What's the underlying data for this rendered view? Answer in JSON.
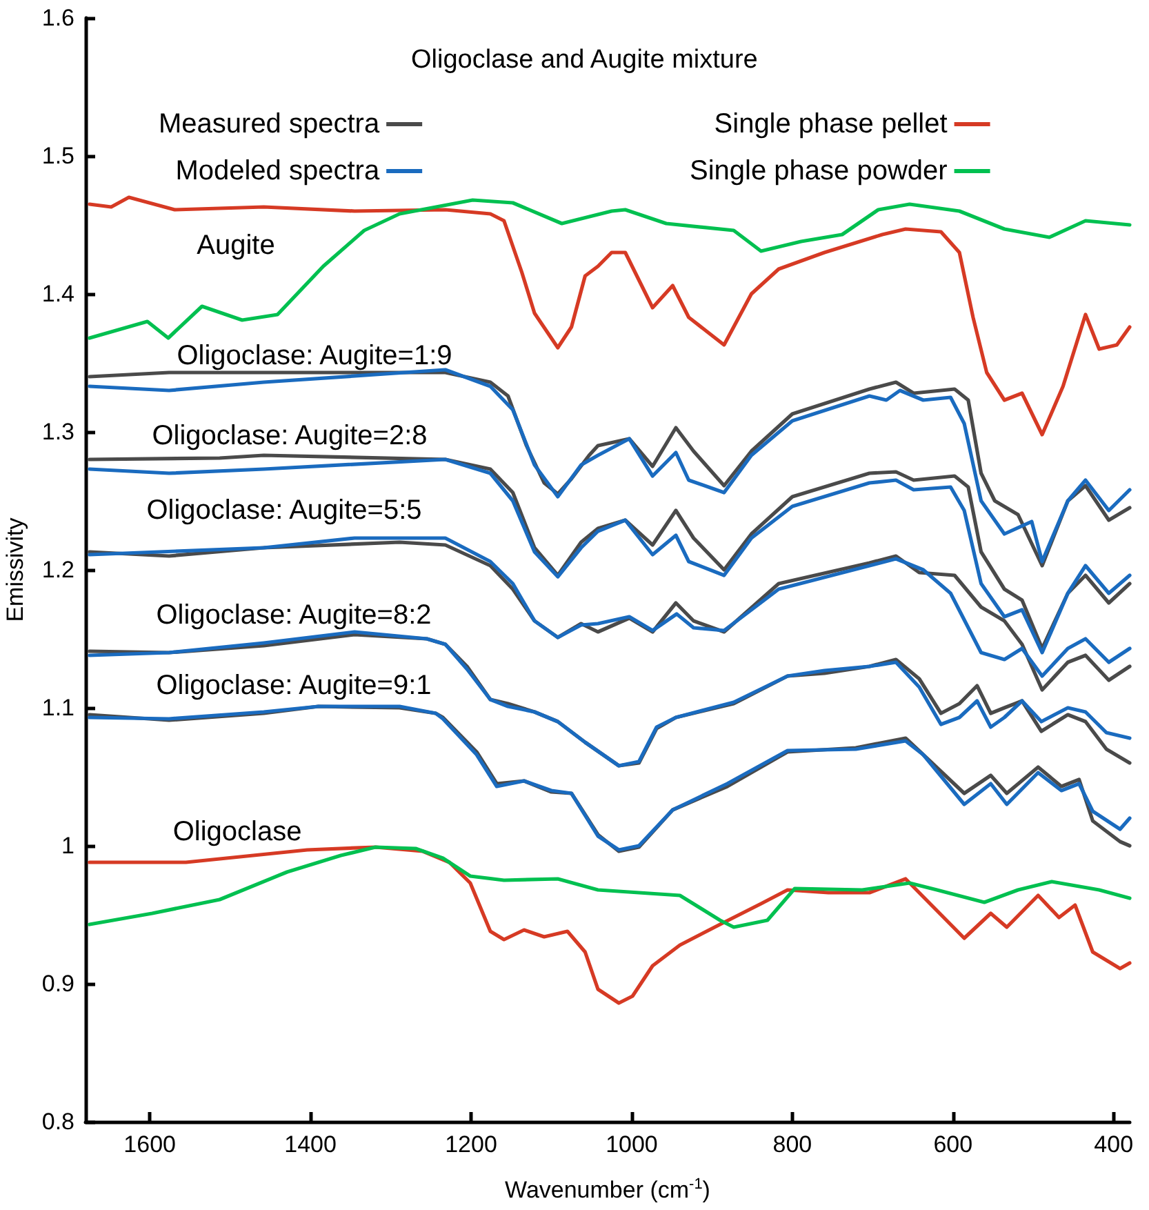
{
  "chart_data": {
    "type": "line",
    "legend_title": "Oligoclase and Augite mixture",
    "xlabel": "Wavenumber (cm$^{-1}$)",
    "ylabel": "Emissivity",
    "xlim": [
      1680,
      380
    ],
    "xticks": [
      1600,
      1400,
      1200,
      1000,
      800,
      600,
      400
    ],
    "ylim": [
      0.8,
      1.6
    ],
    "yticks": [
      0.8,
      0.9,
      1,
      1.1,
      1.2,
      1.3,
      1.4,
      1.5,
      1.6
    ],
    "grid": false,
    "legend": "top",
    "marker": "none",
    "line_style": "solid",
    "annotations": [
      "Augite",
      "Oligoclase: Augite=1:9",
      "Oligoclase: Augite=2:8",
      "Oligoclase: Augite=5:5",
      "Oligoclase: Augite=8:2",
      "Oligoclase: Augite=9:1",
      "Oligoclase"
    ],
    "series": [
      {
        "name": "Single phase pellet",
        "color": "#d63a24",
        "x": [
          1675,
          1648,
          1626,
          1569,
          1458,
          1345,
          1232,
          1176,
          1159,
          1137,
          1121,
          1092,
          1075,
          1058,
          1042,
          1025,
          1008,
          974,
          949,
          929,
          907,
          885,
          851,
          817,
          760,
          688,
          659,
          615,
          592,
          575,
          558,
          536,
          514,
          489,
          463,
          435,
          418,
          396,
          380
        ],
        "values": [
          1.465,
          1.463,
          1.47,
          1.461,
          1.463,
          1.46,
          1.461,
          1.458,
          1.453,
          1.416,
          1.386,
          1.361,
          1.376,
          1.413,
          1.42,
          1.43,
          1.43,
          1.39,
          1.406,
          1.383,
          1.373,
          1.363,
          1.4,
          1.418,
          1.43,
          1.443,
          1.447,
          1.445,
          1.43,
          1.383,
          1.343,
          1.323,
          1.328,
          1.298,
          1.333,
          1.385,
          1.36,
          1.363,
          1.376
        ]
      },
      {
        "name": "Single phase powder",
        "color": "#00c050",
        "x": [
          1675,
          1603,
          1577,
          1535,
          1485,
          1441,
          1384,
          1333,
          1289,
          1198,
          1148,
          1087,
          1025,
          1008,
          957,
          873,
          839,
          789,
          738,
          693,
          654,
          592,
          536,
          480,
          435,
          380
        ],
        "values": [
          1.368,
          1.38,
          1.368,
          1.391,
          1.381,
          1.385,
          1.42,
          1.446,
          1.458,
          1.468,
          1.466,
          1.451,
          1.46,
          1.461,
          1.451,
          1.446,
          1.431,
          1.438,
          1.443,
          1.461,
          1.465,
          1.46,
          1.447,
          1.441,
          1.453,
          1.45
        ]
      },
      {
        "name": "Measured spectra",
        "color": "#4a4a4a",
        "x": [
          1675,
          1576,
          1458,
          1232,
          1176,
          1154,
          1131,
          1109,
          1092,
          1075,
          1053,
          1042,
          1003,
          974,
          945,
          923,
          885,
          851,
          800,
          704,
          671,
          649,
          598,
          581,
          565,
          548,
          519,
          489,
          457,
          435,
          406,
          380
        ],
        "values": [
          1.34,
          1.343,
          1.343,
          1.343,
          1.336,
          1.326,
          1.29,
          1.263,
          1.255,
          1.266,
          1.283,
          1.29,
          1.295,
          1.275,
          1.303,
          1.286,
          1.261,
          1.286,
          1.313,
          1.331,
          1.336,
          1.328,
          1.331,
          1.323,
          1.27,
          1.25,
          1.24,
          1.203,
          1.25,
          1.261,
          1.236,
          1.245
        ]
      },
      {
        "name": "Modeled spectra",
        "color": "#1a6bbf",
        "x": [
          1675,
          1576,
          1458,
          1232,
          1176,
          1148,
          1121,
          1092,
          1063,
          1042,
          1003,
          974,
          945,
          929,
          885,
          851,
          800,
          704,
          683,
          666,
          637,
          603,
          586,
          565,
          536,
          502,
          489,
          457,
          435,
          406,
          380
        ],
        "values": [
          1.333,
          1.33,
          1.336,
          1.345,
          1.333,
          1.316,
          1.276,
          1.253,
          1.276,
          1.283,
          1.295,
          1.268,
          1.285,
          1.265,
          1.256,
          1.283,
          1.308,
          1.326,
          1.323,
          1.33,
          1.323,
          1.325,
          1.306,
          1.25,
          1.226,
          1.235,
          1.206,
          1.25,
          1.265,
          1.243,
          1.258
        ]
      },
      {
        "color": "#4a4a4a",
        "x": [
          1675,
          1513,
          1458,
          1232,
          1176,
          1148,
          1121,
          1092,
          1063,
          1042,
          1008,
          974,
          945,
          923,
          885,
          851,
          800,
          704,
          671,
          649,
          598,
          581,
          565,
          536,
          514,
          489,
          457,
          435,
          406,
          380
        ],
        "values": [
          1.28,
          1.281,
          1.283,
          1.28,
          1.273,
          1.256,
          1.216,
          1.196,
          1.22,
          1.23,
          1.236,
          1.218,
          1.243,
          1.223,
          1.2,
          1.226,
          1.253,
          1.27,
          1.271,
          1.265,
          1.268,
          1.26,
          1.213,
          1.186,
          1.178,
          1.143,
          1.183,
          1.196,
          1.176,
          1.19
        ]
      },
      {
        "color": "#1a6bbf",
        "x": [
          1675,
          1576,
          1458,
          1232,
          1176,
          1148,
          1121,
          1092,
          1063,
          1042,
          1008,
          974,
          945,
          929,
          885,
          851,
          800,
          704,
          671,
          649,
          603,
          586,
          565,
          536,
          514,
          489,
          457,
          435,
          406,
          380
        ],
        "values": [
          1.273,
          1.27,
          1.273,
          1.28,
          1.27,
          1.25,
          1.213,
          1.195,
          1.216,
          1.228,
          1.236,
          1.211,
          1.225,
          1.206,
          1.196,
          1.223,
          1.246,
          1.263,
          1.265,
          1.258,
          1.26,
          1.243,
          1.19,
          1.166,
          1.171,
          1.14,
          1.183,
          1.203,
          1.183,
          1.196
        ]
      },
      {
        "color": "#4a4a4a",
        "x": [
          1675,
          1576,
          1458,
          1289,
          1232,
          1176,
          1148,
          1121,
          1092,
          1063,
          1042,
          1003,
          974,
          945,
          923,
          885,
          817,
          704,
          671,
          642,
          598,
          565,
          536,
          514,
          489,
          457,
          435,
          406,
          380
        ],
        "values": [
          1.213,
          1.21,
          1.216,
          1.22,
          1.218,
          1.203,
          1.186,
          1.163,
          1.151,
          1.161,
          1.155,
          1.165,
          1.155,
          1.176,
          1.163,
          1.155,
          1.19,
          1.205,
          1.21,
          1.198,
          1.196,
          1.173,
          1.163,
          1.146,
          1.113,
          1.133,
          1.138,
          1.12,
          1.13
        ]
      },
      {
        "color": "#1a6bbf",
        "x": [
          1675,
          1458,
          1345,
          1232,
          1176,
          1148,
          1121,
          1092,
          1063,
          1042,
          1003,
          974,
          944,
          923,
          885,
          817,
          704,
          671,
          637,
          603,
          565,
          536,
          514,
          489,
          457,
          435,
          406,
          380
        ],
        "values": [
          1.211,
          1.216,
          1.223,
          1.223,
          1.206,
          1.19,
          1.163,
          1.151,
          1.16,
          1.161,
          1.166,
          1.156,
          1.168,
          1.158,
          1.156,
          1.186,
          1.203,
          1.208,
          1.2,
          1.183,
          1.14,
          1.135,
          1.143,
          1.123,
          1.143,
          1.15,
          1.133,
          1.143
        ]
      },
      {
        "color": "#4a4a4a",
        "x": [
          1675,
          1576,
          1458,
          1345,
          1255,
          1232,
          1205,
          1176,
          1154,
          1121,
          1092,
          1058,
          1016,
          991,
          969,
          945,
          873,
          806,
          760,
          704,
          671,
          642,
          615,
          592,
          570,
          553,
          536,
          514,
          490,
          457,
          435,
          409,
          380
        ],
        "values": [
          1.141,
          1.14,
          1.145,
          1.153,
          1.15,
          1.146,
          1.13,
          1.106,
          1.103,
          1.097,
          1.09,
          1.075,
          1.058,
          1.06,
          1.085,
          1.093,
          1.103,
          1.123,
          1.125,
          1.13,
          1.135,
          1.121,
          1.096,
          1.103,
          1.116,
          1.096,
          1.1,
          1.105,
          1.083,
          1.095,
          1.09,
          1.07,
          1.06
        ]
      },
      {
        "color": "#1a6bbf",
        "x": [
          1675,
          1576,
          1458,
          1345,
          1255,
          1232,
          1205,
          1176,
          1154,
          1121,
          1092,
          1058,
          1016,
          991,
          969,
          945,
          873,
          806,
          760,
          704,
          671,
          642,
          615,
          592,
          570,
          553,
          536,
          514,
          490,
          457,
          435,
          409,
          380
        ],
        "values": [
          1.138,
          1.14,
          1.147,
          1.155,
          1.15,
          1.146,
          1.128,
          1.106,
          1.101,
          1.097,
          1.09,
          1.075,
          1.058,
          1.061,
          1.086,
          1.093,
          1.104,
          1.123,
          1.127,
          1.13,
          1.133,
          1.115,
          1.088,
          1.093,
          1.105,
          1.086,
          1.093,
          1.105,
          1.09,
          1.1,
          1.097,
          1.082,
          1.078
        ]
      },
      {
        "color": "#4a4a4a",
        "x": [
          1675,
          1576,
          1458,
          1390,
          1289,
          1244,
          1235,
          1193,
          1168,
          1134,
          1100,
          1075,
          1042,
          1016,
          991,
          949,
          881,
          806,
          721,
          659,
          637,
          586,
          553,
          533,
          494,
          465,
          443,
          426,
          392,
          380
        ],
        "values": [
          1.095,
          1.091,
          1.096,
          1.101,
          1.1,
          1.096,
          1.093,
          1.068,
          1.045,
          1.047,
          1.039,
          1.038,
          1.008,
          0.996,
          0.999,
          1.026,
          1.043,
          1.068,
          1.071,
          1.078,
          1.066,
          1.038,
          1.051,
          1.038,
          1.057,
          1.043,
          1.048,
          1.018,
          1.003,
          1.0
        ]
      },
      {
        "color": "#1a6bbf",
        "x": [
          1675,
          1576,
          1458,
          1390,
          1289,
          1244,
          1235,
          1193,
          1168,
          1134,
          1100,
          1075,
          1042,
          1016,
          991,
          949,
          881,
          806,
          721,
          659,
          637,
          586,
          553,
          533,
          494,
          465,
          443,
          426,
          392,
          380
        ],
        "values": [
          1.093,
          1.092,
          1.097,
          1.101,
          1.101,
          1.096,
          1.092,
          1.066,
          1.043,
          1.047,
          1.04,
          1.038,
          1.007,
          0.997,
          1.0,
          1.026,
          1.045,
          1.069,
          1.07,
          1.076,
          1.066,
          1.03,
          1.045,
          1.03,
          1.053,
          1.04,
          1.045,
          1.025,
          1.012,
          1.02
        ]
      },
      {
        "color": "#d63a24",
        "x": [
          1675,
          1648,
          1555,
          1471,
          1404,
          1319,
          1260,
          1227,
          1201,
          1176,
          1159,
          1134,
          1109,
          1080,
          1058,
          1042,
          1016,
          999,
          974,
          940,
          890,
          839,
          806,
          755,
          704,
          659,
          637,
          586,
          553,
          533,
          494,
          468,
          448,
          426,
          392,
          380
        ],
        "values": [
          0.988,
          0.988,
          0.988,
          0.993,
          0.997,
          0.999,
          0.996,
          0.988,
          0.973,
          0.938,
          0.932,
          0.939,
          0.934,
          0.938,
          0.923,
          0.896,
          0.886,
          0.891,
          0.913,
          0.928,
          0.943,
          0.958,
          0.968,
          0.966,
          0.966,
          0.976,
          0.963,
          0.933,
          0.951,
          0.941,
          0.964,
          0.948,
          0.957,
          0.923,
          0.911,
          0.915
        ]
      },
      {
        "color": "#00c050",
        "x": [
          1675,
          1597,
          1513,
          1429,
          1362,
          1319,
          1269,
          1235,
          1201,
          1159,
          1092,
          1042,
          940,
          890,
          873,
          831,
          797,
          713,
          654,
          620,
          561,
          519,
          477,
          418,
          380
        ],
        "values": [
          0.943,
          0.951,
          0.961,
          0.981,
          0.993,
          0.999,
          0.998,
          0.991,
          0.978,
          0.975,
          0.976,
          0.968,
          0.964,
          0.946,
          0.941,
          0.946,
          0.969,
          0.968,
          0.973,
          0.968,
          0.959,
          0.968,
          0.974,
          0.968,
          0.962
        ]
      }
    ]
  }
}
